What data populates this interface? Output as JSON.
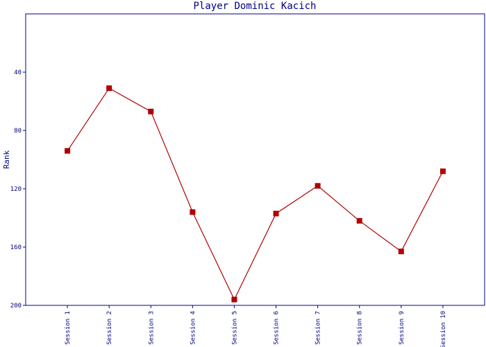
{
  "chart_data": {
    "type": "line",
    "title": "Player Dominic Kacich",
    "y_label": "Rank",
    "categories": [
      "Session 1",
      "Session 2",
      "Session 3",
      "Session 4",
      "Session 5",
      "Session 6",
      "Session 7",
      "Session 8",
      "Session 9",
      "Session 10"
    ],
    "values": [
      94,
      51,
      67,
      136,
      196,
      137,
      118,
      142,
      163,
      108
    ],
    "color": "#b00000",
    "ylim": [
      0,
      200
    ],
    "y_inverted": true,
    "yticks": [
      40,
      80,
      120,
      160,
      200
    ]
  }
}
